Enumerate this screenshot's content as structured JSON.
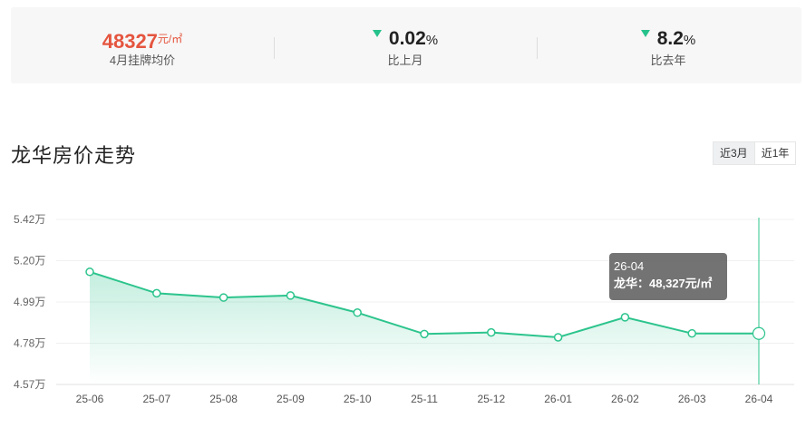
{
  "stats": {
    "price": {
      "value": "48327",
      "unit": "元/㎡",
      "label": "4月挂牌均价"
    },
    "mom": {
      "value": "0.02",
      "unit": "%",
      "label": "比上月",
      "direction": "down"
    },
    "yoy": {
      "value": "8.2",
      "unit": "%",
      "label": "比去年",
      "direction": "down"
    }
  },
  "section_title": "龙华房价走势",
  "range_tabs": [
    {
      "label": "近3月",
      "active": true
    },
    {
      "label": "近1年",
      "active": false
    }
  ],
  "tooltip": {
    "date": "26-04",
    "series_label": "龙华：",
    "value_text": "48,327元/㎡"
  },
  "colors": {
    "accent_red": "#e5553f",
    "line_green": "#2cc48d",
    "arrow_green": "#26c28b"
  },
  "chart_data": {
    "type": "area",
    "categories": [
      "25-06",
      "25-07",
      "25-08",
      "25-09",
      "25-10",
      "25-11",
      "25-12",
      "26-01",
      "26-02",
      "26-03",
      "26-04"
    ],
    "series": [
      {
        "name": "龙华",
        "values": [
          51500,
          50400,
          50180,
          50280,
          49400,
          48300,
          48380,
          48130,
          49160,
          48330,
          48327
        ]
      }
    ],
    "yticks": [
      "4.57万",
      "4.78万",
      "4.99万",
      "5.20万",
      "5.42万"
    ],
    "ylim": [
      45700,
      54200
    ],
    "highlight_index": 10,
    "grid": true
  }
}
